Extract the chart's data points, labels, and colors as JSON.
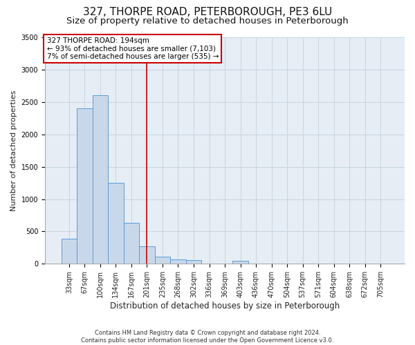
{
  "title": "327, THORPE ROAD, PETERBOROUGH, PE3 6LU",
  "subtitle": "Size of property relative to detached houses in Peterborough",
  "xlabel": "Distribution of detached houses by size in Peterborough",
  "ylabel": "Number of detached properties",
  "categories": [
    "33sqm",
    "67sqm",
    "100sqm",
    "134sqm",
    "167sqm",
    "201sqm",
    "235sqm",
    "268sqm",
    "302sqm",
    "336sqm",
    "369sqm",
    "403sqm",
    "436sqm",
    "470sqm",
    "504sqm",
    "537sqm",
    "571sqm",
    "604sqm",
    "638sqm",
    "672sqm",
    "705sqm"
  ],
  "bar_heights": [
    390,
    2400,
    2600,
    1250,
    635,
    270,
    110,
    65,
    55,
    0,
    0,
    50,
    0,
    0,
    0,
    0,
    0,
    0,
    0,
    0,
    0
  ],
  "bar_color": "#c8d8ea",
  "bar_edge_color": "#5b9bd5",
  "vline_x": 5,
  "vline_color": "#cc0000",
  "ylim_max": 3500,
  "yticks": [
    0,
    500,
    1000,
    1500,
    2000,
    2500,
    3000,
    3500
  ],
  "annotation_text": "327 THORPE ROAD: 194sqm\n← 93% of detached houses are smaller (7,103)\n7% of semi-detached houses are larger (535) →",
  "annotation_box_facecolor": "#ffffff",
  "annotation_box_edgecolor": "#cc0000",
  "grid_color": "#c8d4e0",
  "bg_color": "#e6edf5",
  "footer": "Contains HM Land Registry data © Crown copyright and database right 2024.\nContains public sector information licensed under the Open Government Licence v3.0.",
  "title_fontsize": 11,
  "subtitle_fontsize": 9.5,
  "tick_fontsize": 7,
  "ylabel_fontsize": 8,
  "xlabel_fontsize": 8.5,
  "annotation_fontsize": 7.5,
  "footer_fontsize": 6
}
